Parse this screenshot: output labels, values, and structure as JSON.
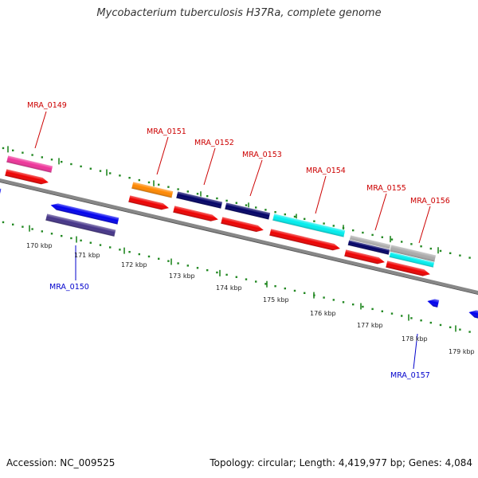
{
  "title": "Mycobacterium tuberculosis H37Ra, complete genome",
  "footer": {
    "accession": "Accession: NC_009525",
    "summary": "Topology: circular; Length: 4,419,977 bp; Genes: 4,084"
  },
  "tick_labels": [
    "170 kbp",
    "171 kbp",
    "172 kbp",
    "173 kbp",
    "174 kbp",
    "175 kbp",
    "176 kbp",
    "177 kbp",
    "178 kbp",
    "179 kbp"
  ],
  "genes": [
    {
      "label": "MRA_0149",
      "strand": "forward",
      "label_color": "#cc0000"
    },
    {
      "label": "MRA_0150",
      "strand": "reverse",
      "label_color": "#0000cc"
    },
    {
      "label": "MRA_0151",
      "strand": "forward",
      "label_color": "#cc0000"
    },
    {
      "label": "MRA_0152",
      "strand": "forward",
      "label_color": "#cc0000"
    },
    {
      "label": "MRA_0153",
      "strand": "forward",
      "label_color": "#cc0000"
    },
    {
      "label": "MRA_0154",
      "strand": "forward",
      "label_color": "#cc0000"
    },
    {
      "label": "MRA_0155",
      "strand": "forward",
      "label_color": "#cc0000"
    },
    {
      "label": "MRA_0156",
      "strand": "forward",
      "label_color": "#cc0000"
    },
    {
      "label": "MRA_0157",
      "strand": "reverse",
      "label_color": "#0000cc"
    }
  ],
  "colors": {
    "backbone": "#888888",
    "forward_cds": "#ee0000",
    "reverse_cds": "#0000ee",
    "tick_marks": "#228822",
    "cog_pink": "#ee3399",
    "cog_orange": "#ff8800",
    "cog_navy": "#000066",
    "cog_cyan": "#00eeee",
    "cog_purple": "#443388",
    "cog_gray": "#aaaaaa"
  }
}
